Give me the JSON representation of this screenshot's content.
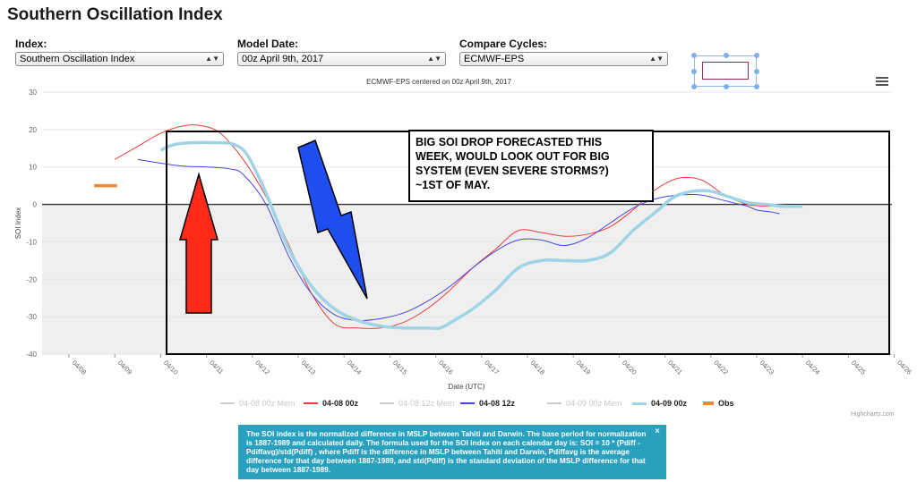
{
  "page": {
    "title": "Southern Oscillation Index"
  },
  "controls": {
    "index": {
      "label": "Index:",
      "value": "Southern Oscillation Index"
    },
    "model_date": {
      "label": "Model Date:",
      "value": "00z April 9th, 2017"
    },
    "compare": {
      "label": "Compare Cycles:",
      "value": "ECMWF-EPS"
    }
  },
  "annotation_text": [
    "BIG SOI DROP FORECASTED THIS",
    "WEEK, WOULD LOOK OUT FOR BIG",
    "SYSTEM (EVEN SEVERE STORMS?)",
    "~1ST OF MAY."
  ],
  "legend_items": [
    {
      "name": "04-08 00z Mem",
      "color": "#cccccc",
      "active": false
    },
    {
      "name": "04-08 00z",
      "color": "#ee3b3b",
      "active": true
    },
    {
      "name": "04-08 12z Mem",
      "color": "#cccccc",
      "active": false
    },
    {
      "name": "04-08 12z",
      "color": "#4646e0",
      "active": true
    },
    {
      "name": "04-09 00z Mem",
      "color": "#cccccc",
      "active": false
    },
    {
      "name": "04-09 00z",
      "color": "#9fd3e6",
      "active": true
    },
    {
      "name": "Obs",
      "color": "#f0892b",
      "active": true
    }
  ],
  "credits": "Highcharts.com",
  "info_text": "The SOI index is the normalized difference in MSLP between Tahiti and Darwin. The base period for normalization is 1887-1989 and calculated daily. The formula used for the SOI index on each calendar day is: SOI = 10 * (Pdiff - Pdiffavg)/std(Pdiff) , where Pdiff is the difference in MSLP between Tahiti and Darwin, Pdiffavg is the average difference for that day between 1887-1989, and std(Pdiff) is the standard deviation of the MSLP difference for that day between 1887-1989.",
  "info_close": "×",
  "chart_data": {
    "type": "line",
    "title": "ECMWF-EPS centered on 00z April 9th, 2017",
    "xlabel": "Date (UTC)",
    "ylabel": "SOI Index",
    "ylim": [
      -40,
      30
    ],
    "yticks": [
      30,
      20,
      10,
      0,
      -10,
      -20,
      -30,
      -40
    ],
    "xticks": [
      "04/08",
      "04/09",
      "04/10",
      "04/11",
      "04/12",
      "04/13",
      "04/14",
      "04/15",
      "04/16",
      "04/17",
      "04/18",
      "04/19",
      "04/20",
      "04/21",
      "04/22",
      "04/23",
      "04/24",
      "04/25",
      "04/26"
    ],
    "shaded_region": "below zero",
    "series": [
      {
        "name": "04-08 00z",
        "color": "#ee3b3b",
        "width": 1,
        "x": [
          9.0,
          9.5,
          10.0,
          10.5,
          10.9,
          11.3,
          11.8,
          12.3,
          12.8,
          13.3,
          13.8,
          14.3,
          14.8,
          15.3,
          15.8,
          16.3,
          16.8,
          17.3,
          17.8,
          18.3,
          18.8,
          19.3,
          19.8,
          20.3,
          20.8,
          21.3,
          21.8,
          22.3,
          22.8,
          23.3
        ],
        "y": [
          12,
          15.5,
          19,
          21,
          21,
          19,
          12,
          2,
          -11,
          -24,
          -32,
          -33,
          -33,
          -31.5,
          -28,
          -23,
          -17,
          -12,
          -7,
          -7.5,
          -8.5,
          -8,
          -6,
          -1.5,
          4,
          7,
          6.5,
          2.5,
          0,
          -0.5
        ]
      },
      {
        "name": "04-08 12z",
        "color": "#4646e0",
        "width": 1,
        "x": [
          9.5,
          10.0,
          10.5,
          11.0,
          11.5,
          11.8,
          12.3,
          12.8,
          13.3,
          13.8,
          14.3,
          14.8,
          15.3,
          15.8,
          16.3,
          16.8,
          17.3,
          17.8,
          18.3,
          18.8,
          19.3,
          19.8,
          20.3,
          20.8,
          21.3,
          21.8,
          22.3,
          22.8,
          23.0,
          23.3,
          23.5
        ],
        "y": [
          12,
          11,
          10.2,
          10,
          9.5,
          8,
          0,
          -14,
          -24,
          -29.5,
          -31,
          -30.5,
          -29,
          -26,
          -22,
          -17,
          -12.5,
          -9.5,
          -9.5,
          -11,
          -9,
          -5,
          -1,
          1.5,
          2.5,
          2.5,
          1,
          -0.5,
          -1.5,
          -2,
          -2.5
        ]
      },
      {
        "name": "04-09 00z",
        "color": "#9fd3e6",
        "width": 3.5,
        "x": [
          10.0,
          10.3,
          10.7,
          11.2,
          11.6,
          11.9,
          12.3,
          12.8,
          13.3,
          13.8,
          14.3,
          14.8,
          15.3,
          15.8,
          16.1,
          16.4,
          16.8,
          17.3,
          17.8,
          18.3,
          18.8,
          19.3,
          19.8,
          20.3,
          20.8,
          21.2,
          21.6,
          22.0,
          22.4,
          22.8,
          23.2,
          23.6,
          24.0
        ],
        "y": [
          14.5,
          16,
          16.5,
          16.5,
          16,
          13,
          3,
          -12,
          -22,
          -28,
          -31,
          -32.5,
          -33,
          -33,
          -33,
          -31,
          -28,
          -23,
          -17,
          -15,
          -15,
          -15,
          -13,
          -7,
          -2,
          2,
          3.5,
          3.5,
          2,
          0.5,
          0,
          -0.5,
          -0.5
        ]
      },
      {
        "name": "Obs",
        "color": "#f0892b",
        "width": 3.5,
        "x": [
          8.55,
          9.05
        ],
        "y": [
          5,
          5
        ]
      }
    ]
  }
}
